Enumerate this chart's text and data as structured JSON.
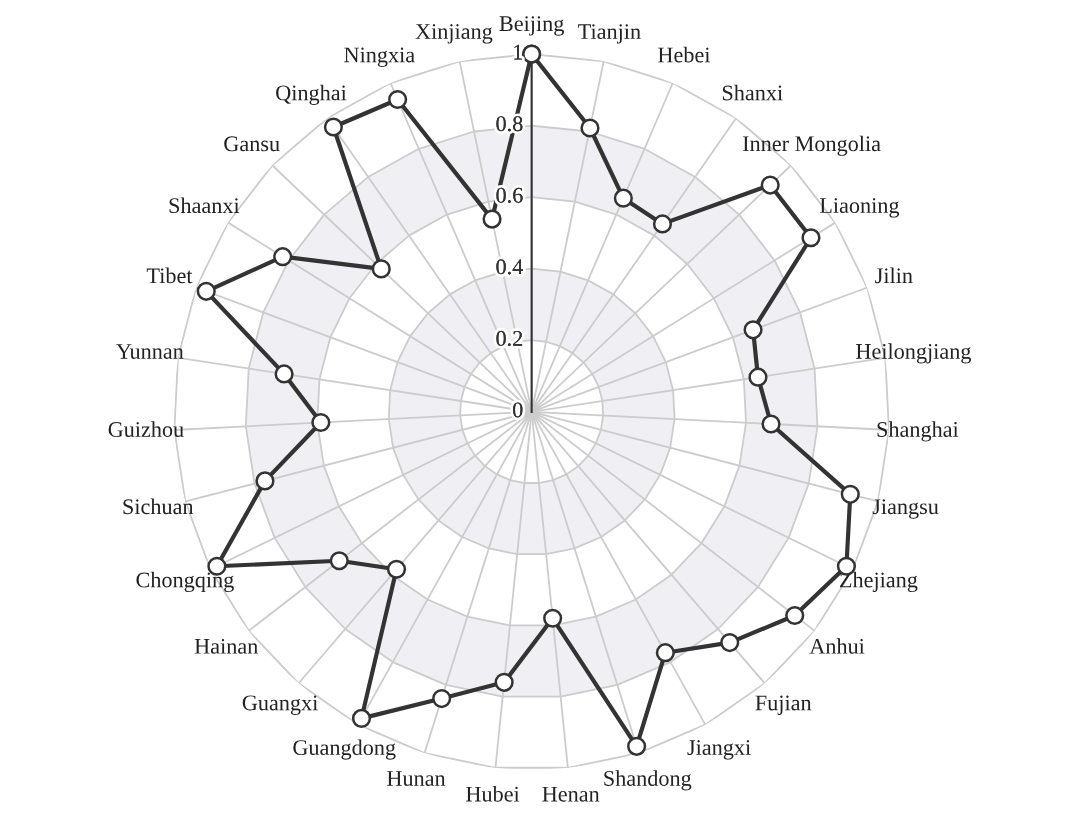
{
  "chart_data": {
    "type": "radar",
    "categories": [
      "Beijing",
      "Tianjin",
      "Hebei",
      "Shanxi",
      "Inner Mongolia",
      "Liaoning",
      "Jilin",
      "Heilongjiang",
      "Shanghai",
      "Jiangsu",
      "Zhejiang",
      "Anhui",
      "Fujian",
      "Jiangxi",
      "Shandong",
      "Henan",
      "Hubei",
      "Hunan",
      "Guangdong",
      "Guangxi",
      "Hainan",
      "Chongqing",
      "Sichuan",
      "Guizhou",
      "Yunnan",
      "Tibet",
      "Shaanxi",
      "Gansu",
      "Qinghai",
      "Ningxia",
      "Xinjiang"
    ],
    "series": [
      {
        "color": "#333333",
        "values": [
          1.0,
          0.81,
          0.65,
          0.64,
          0.92,
          0.92,
          0.66,
          0.64,
          0.67,
          0.92,
          0.98,
          0.93,
          0.85,
          0.77,
          0.98,
          0.58,
          0.76,
          0.84,
          0.98,
          0.58,
          0.68,
          0.98,
          0.77,
          0.59,
          0.7,
          0.97,
          0.82,
          0.58,
          0.97,
          0.95,
          0.55
        ]
      }
    ],
    "ylim": [
      0,
      1
    ],
    "yticks": [
      0,
      0.2,
      0.4,
      0.6,
      0.8,
      1
    ],
    "grid": true,
    "marker": "circle",
    "line_style": "solid"
  }
}
